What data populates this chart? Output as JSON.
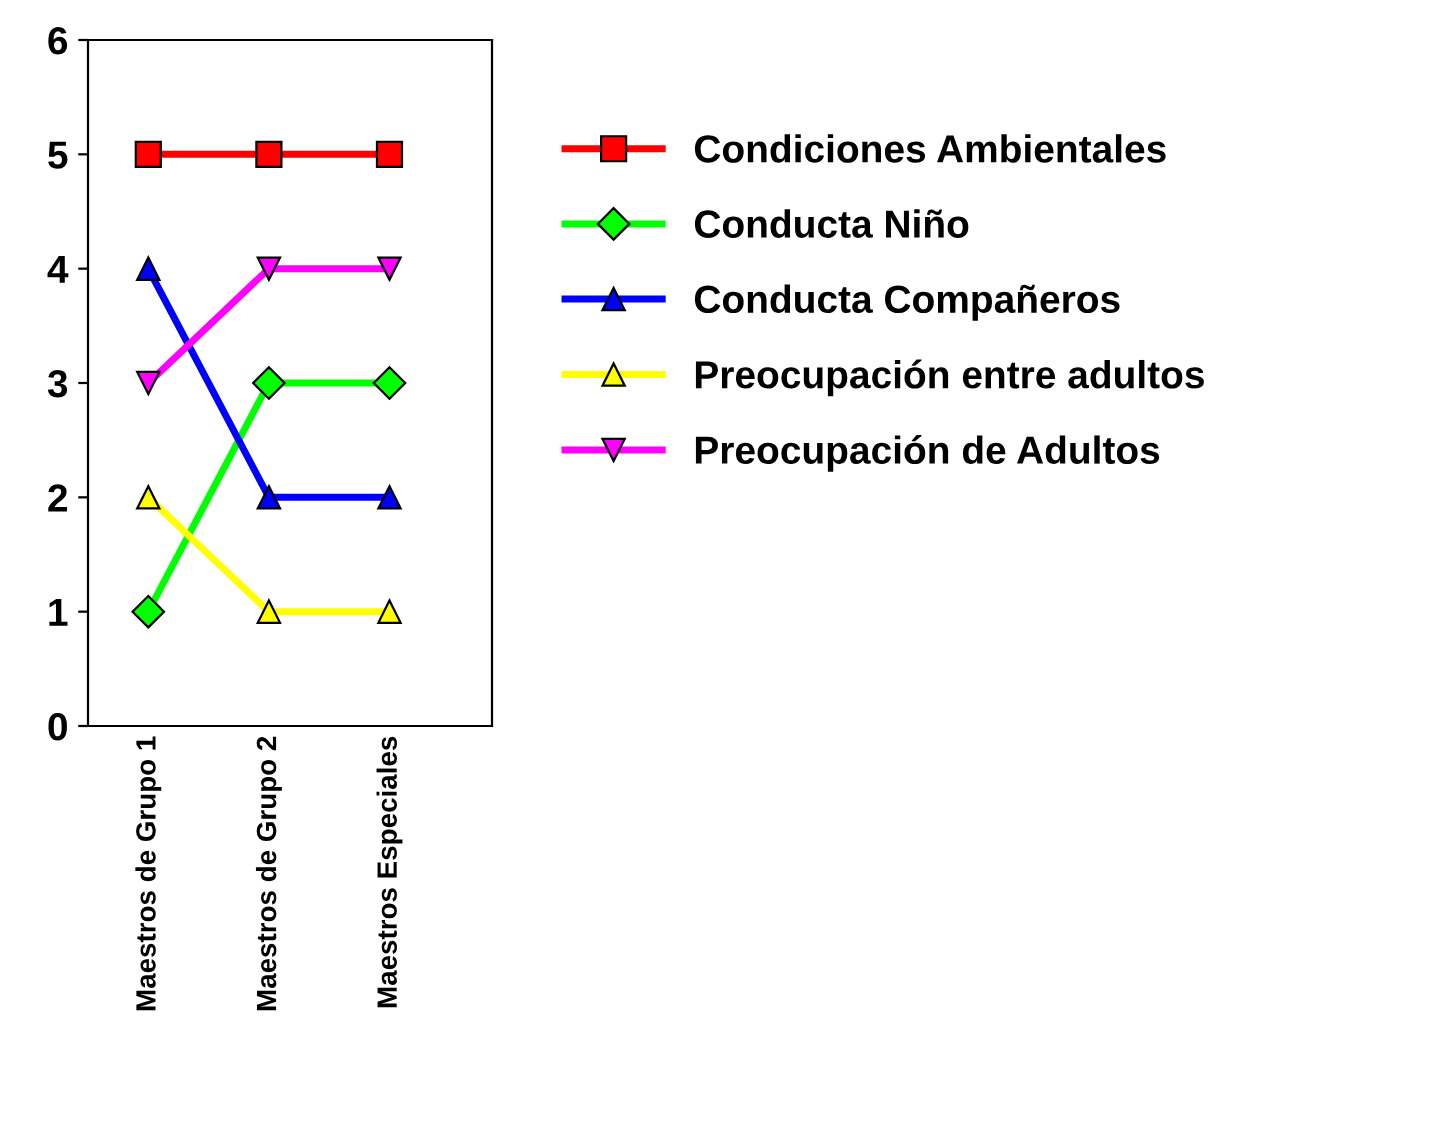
{
  "chart_data": {
    "type": "line",
    "categories": [
      "Maestros de Grupo 1",
      "Maestros de Grupo 2",
      "Maestros Especiales"
    ],
    "ylim": [
      0,
      6
    ],
    "yticks": [
      0,
      1,
      2,
      3,
      4,
      5,
      6
    ],
    "grid": false,
    "legend": "right",
    "series": [
      {
        "name": "Condiciones Ambientales",
        "color": "#ff0000",
        "marker": "square",
        "values": [
          5,
          5,
          5
        ]
      },
      {
        "name": "Conducta Niño",
        "color": "#00ff00",
        "marker": "diamond",
        "values": [
          1,
          3,
          3
        ]
      },
      {
        "name": "Conducta Compañeros",
        "color": "#0000ff",
        "marker": "triangle",
        "values": [
          4,
          2,
          2
        ]
      },
      {
        "name": "Preocupación entre adultos",
        "color": "#ffff00",
        "marker": "triangle",
        "values": [
          2,
          1,
          1
        ]
      },
      {
        "name": "Preocupación de Adultos",
        "color": "#ff00ff",
        "marker": "triangle-down",
        "values": [
          3,
          4,
          4
        ]
      }
    ]
  }
}
